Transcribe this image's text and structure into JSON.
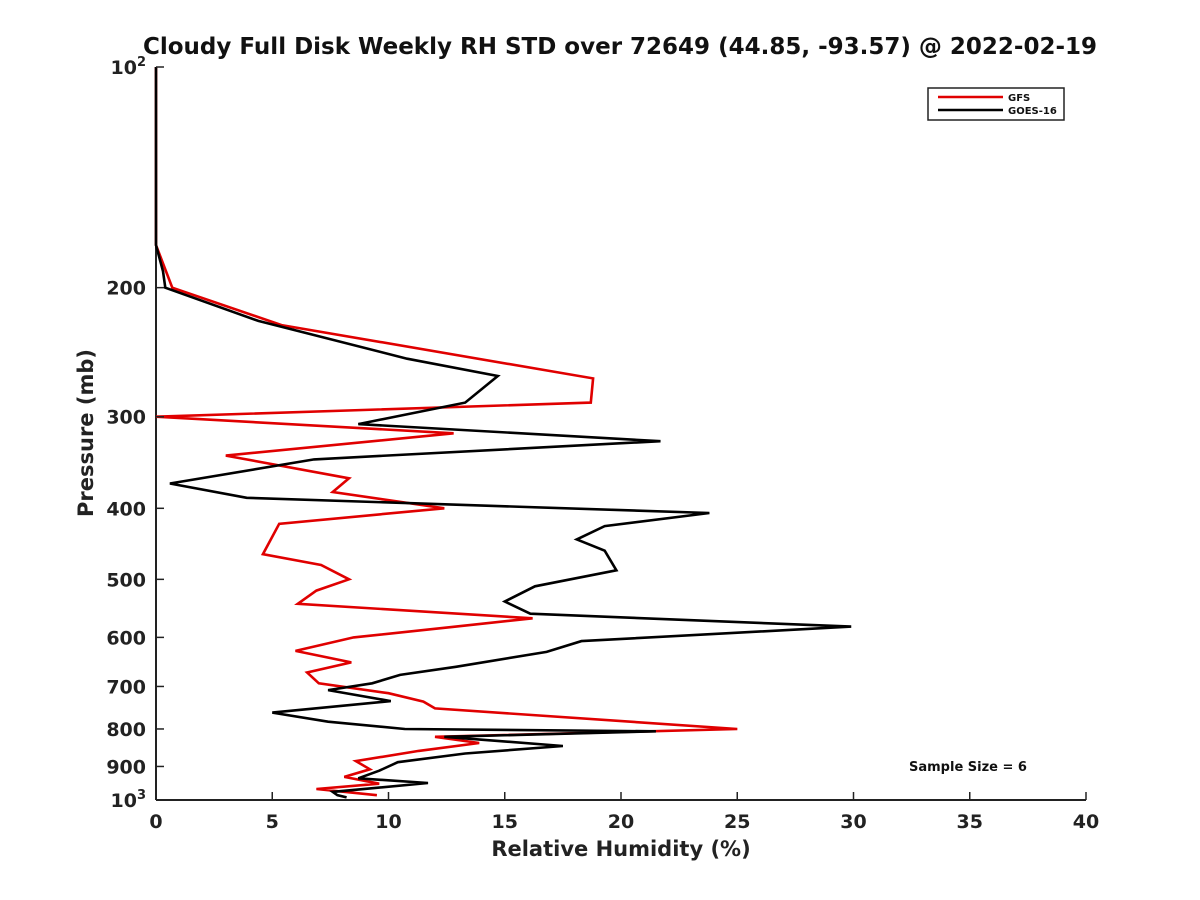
{
  "chart_data": {
    "type": "line",
    "title": "Cloudy Full Disk Weekly RH STD over 72649 (44.85, -93.57) @ 2022-02-19",
    "xlabel": "Relative Humidity (%)",
    "ylabel": "Pressure (mb)",
    "xlim": [
      0,
      40
    ],
    "ylim": [
      100,
      1000
    ],
    "yscale": "log",
    "y_inverted": true,
    "x_ticks": [
      "0",
      "5",
      "10",
      "15",
      "20",
      "25",
      "30",
      "35",
      "40"
    ],
    "y_ticks": [
      {
        "value": 100,
        "base": "10",
        "exp": "2"
      },
      {
        "value": 200,
        "label": "200"
      },
      {
        "value": 300,
        "label": "300"
      },
      {
        "value": 400,
        "label": "400"
      },
      {
        "value": 500,
        "label": "500"
      },
      {
        "value": 600,
        "label": "600"
      },
      {
        "value": 700,
        "label": "700"
      },
      {
        "value": 800,
        "label": "800"
      },
      {
        "value": 900,
        "label": "900"
      },
      {
        "value": 1000,
        "base": "10",
        "exp": "3"
      }
    ],
    "grid": false,
    "legend_position": "top-right",
    "annotation": "Sample Size = 6",
    "series": [
      {
        "name": "GFS",
        "color": "#e00000",
        "points": [
          [
            0,
            100
          ],
          [
            0,
            150
          ],
          [
            0,
            175
          ],
          [
            0.7,
            200
          ],
          [
            5.4,
            225
          ],
          [
            18.8,
            266
          ],
          [
            18.7,
            287
          ],
          [
            0,
            300
          ],
          [
            12.8,
            316
          ],
          [
            3.0,
            339
          ],
          [
            8.3,
            364
          ],
          [
            7.6,
            380
          ],
          [
            12.4,
            400
          ],
          [
            5.3,
            420
          ],
          [
            4.6,
            462
          ],
          [
            7.1,
            478
          ],
          [
            8.3,
            500
          ],
          [
            6.9,
            518
          ],
          [
            6.1,
            540
          ],
          [
            16.2,
            565
          ],
          [
            12.7,
            581
          ],
          [
            8.5,
            600
          ],
          [
            6.0,
            626
          ],
          [
            8.4,
            649
          ],
          [
            6.5,
            670
          ],
          [
            7.0,
            693
          ],
          [
            10.0,
            715
          ],
          [
            11.5,
            734
          ],
          [
            12.0,
            750
          ],
          [
            25.0,
            800
          ],
          [
            12.0,
            820
          ],
          [
            13.9,
            836
          ],
          [
            11.3,
            857
          ],
          [
            8.6,
            885
          ],
          [
            9.2,
            908
          ],
          [
            8.1,
            930
          ],
          [
            9.6,
            950
          ],
          [
            6.9,
            966
          ],
          [
            9.5,
            985
          ]
        ]
      },
      {
        "name": "GOES-16",
        "color": "#000000",
        "points": [
          [
            0,
            100
          ],
          [
            0,
            150
          ],
          [
            0,
            175
          ],
          [
            0.3,
            190
          ],
          [
            0.4,
            200
          ],
          [
            4.4,
            222
          ],
          [
            10.8,
            250
          ],
          [
            14.7,
            264
          ],
          [
            13.3,
            287
          ],
          [
            8.7,
            307
          ],
          [
            21.7,
            324
          ],
          [
            6.8,
            343
          ],
          [
            0.6,
            370
          ],
          [
            3.9,
            387
          ],
          [
            23.8,
            406
          ],
          [
            19.3,
            423
          ],
          [
            18.1,
            441
          ],
          [
            19.3,
            457
          ],
          [
            19.8,
            486
          ],
          [
            16.3,
            511
          ],
          [
            15.0,
            536
          ],
          [
            16.1,
            557
          ],
          [
            29.9,
            580
          ],
          [
            18.3,
            607
          ],
          [
            16.8,
            628
          ],
          [
            12.9,
            658
          ],
          [
            10.5,
            675
          ],
          [
            9.3,
            693
          ],
          [
            7.4,
            708
          ],
          [
            10.1,
            733
          ],
          [
            5.0,
            760
          ],
          [
            7.4,
            782
          ],
          [
            10.7,
            800
          ],
          [
            21.5,
            806
          ],
          [
            12.4,
            820
          ],
          [
            17.5,
            844
          ],
          [
            13.3,
            864
          ],
          [
            10.4,
            888
          ],
          [
            9.6,
            912
          ],
          [
            8.7,
            934
          ],
          [
            11.7,
            948
          ],
          [
            7.6,
            975
          ],
          [
            7.8,
            985
          ],
          [
            8.2,
            992
          ]
        ]
      }
    ]
  }
}
